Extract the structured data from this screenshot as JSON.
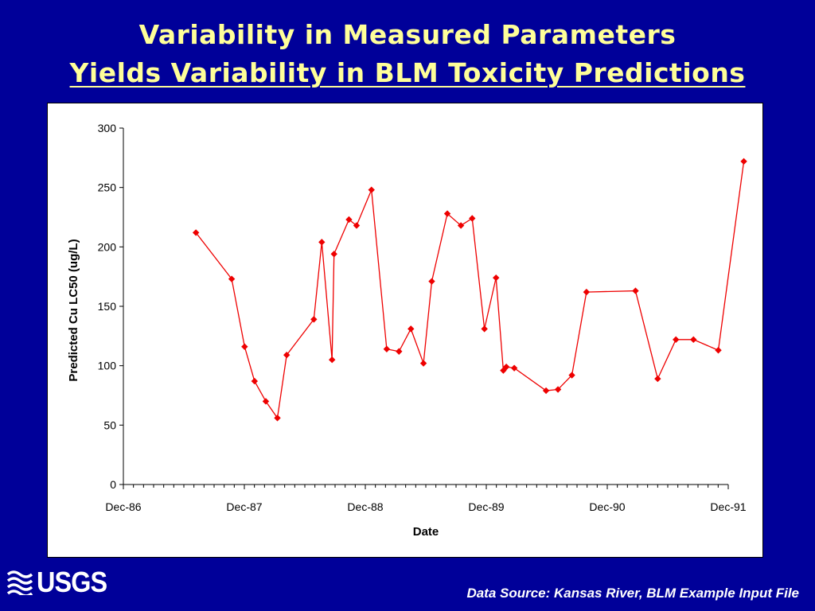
{
  "slide": {
    "title_line1": "Variability in Measured Parameters",
    "title_line2": "Yields Variability in BLM Toxicity Predictions",
    "logo_text": "USGS",
    "source": "Data Source:  Kansas River, BLM Example Input File"
  },
  "colors": {
    "background": "#000099",
    "title": "#ffff99",
    "series": "#ee0000"
  },
  "chart_data": {
    "type": "line",
    "title": "",
    "xlabel": "Date",
    "ylabel": "Predicted Cu LC50 (ug/L)",
    "xlim": [
      "1986-12-01",
      "1991-12-01"
    ],
    "ylim": [
      0,
      300
    ],
    "x_ticks": [
      "Dec-86",
      "Dec-87",
      "Dec-88",
      "Dec-89",
      "Dec-90",
      "Dec-91"
    ],
    "y_ticks": [
      0,
      50,
      100,
      150,
      200,
      250,
      300
    ],
    "grid": false,
    "legend": "none",
    "series": [
      {
        "marker": "diamond",
        "points": [
          {
            "x": "1987-07-08",
            "y": 212
          },
          {
            "x": "1987-10-24",
            "y": 173
          },
          {
            "x": "1987-12-02",
            "y": 116
          },
          {
            "x": "1988-01-01",
            "y": 87
          },
          {
            "x": "1988-02-04",
            "y": 70
          },
          {
            "x": "1988-03-10",
            "y": 56
          },
          {
            "x": "1988-04-07",
            "y": 109
          },
          {
            "x": "1988-06-28",
            "y": 139
          },
          {
            "x": "1988-07-22",
            "y": 204
          },
          {
            "x": "1988-08-22",
            "y": 105
          },
          {
            "x": "1988-08-28",
            "y": 194
          },
          {
            "x": "1988-10-12",
            "y": 223
          },
          {
            "x": "1988-11-04",
            "y": 218
          },
          {
            "x": "1988-12-19",
            "y": 248
          },
          {
            "x": "1989-02-03",
            "y": 114
          },
          {
            "x": "1989-03-12",
            "y": 112
          },
          {
            "x": "1989-04-17",
            "y": 131
          },
          {
            "x": "1989-05-25",
            "y": 102
          },
          {
            "x": "1989-06-19",
            "y": 171
          },
          {
            "x": "1989-08-05",
            "y": 228
          },
          {
            "x": "1989-09-15",
            "y": 218
          },
          {
            "x": "1989-10-19",
            "y": 224
          },
          {
            "x": "1989-11-25",
            "y": 131
          },
          {
            "x": "1989-12-30",
            "y": 174
          },
          {
            "x": "1990-01-21",
            "y": 96
          },
          {
            "x": "1990-01-30",
            "y": 99
          },
          {
            "x": "1990-02-23",
            "y": 98
          },
          {
            "x": "1990-05-30",
            "y": 79
          },
          {
            "x": "1990-07-05",
            "y": 80
          },
          {
            "x": "1990-08-16",
            "y": 92
          },
          {
            "x": "1990-09-29",
            "y": 162
          },
          {
            "x": "1991-02-24",
            "y": 163
          },
          {
            "x": "1991-05-02",
            "y": 89
          },
          {
            "x": "1991-06-26",
            "y": 122
          },
          {
            "x": "1991-08-18",
            "y": 122
          },
          {
            "x": "1991-11-01",
            "y": 113
          },
          {
            "x": "1992-01-17",
            "y": 272
          }
        ]
      }
    ]
  }
}
